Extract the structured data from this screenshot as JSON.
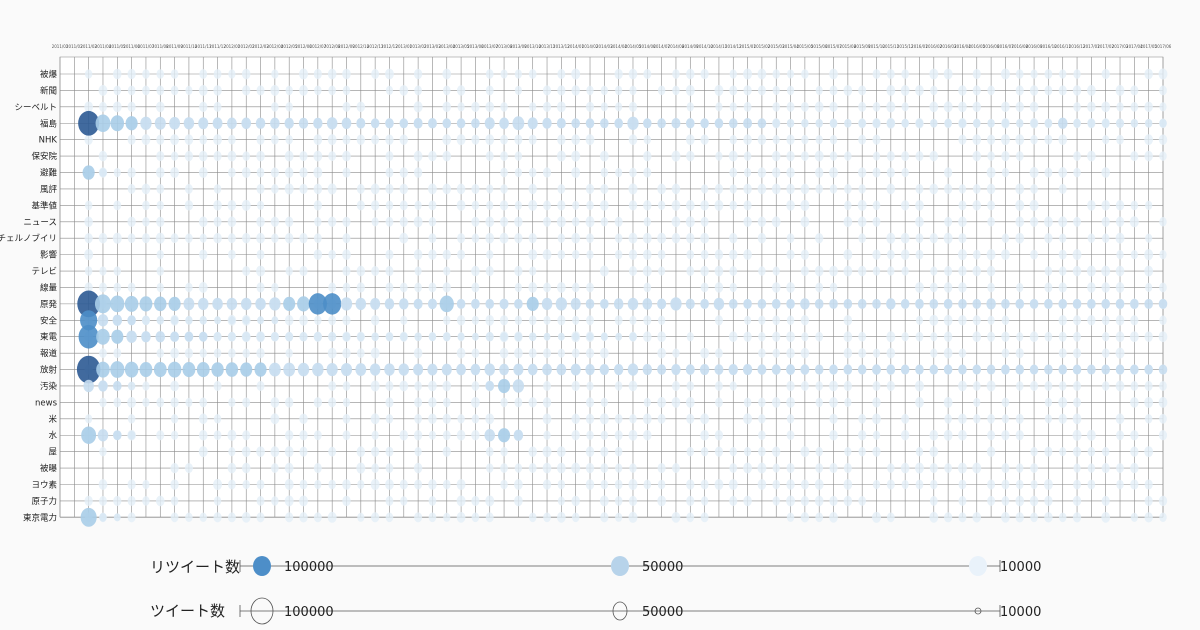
{
  "chart_data": {
    "type": "bubble-matrix",
    "rows": [
      "被爆",
      "新聞",
      "シーベルト",
      "福島",
      "NHK",
      "保安院",
      "避難",
      "風評",
      "基準値",
      "ニュース",
      "チェルノブイリ",
      "影響",
      "テレビ",
      "線量",
      "原発",
      "安全",
      "東電",
      "報道",
      "放射",
      "汚染",
      "news",
      "米",
      "水",
      "屋",
      "被曝",
      "ヨウ素",
      "原子力",
      "東京電力"
    ],
    "columns": [
      "2011/01",
      "2011/02",
      "2011/03",
      "2011/04",
      "2011/05",
      "2011/06",
      "2011/07",
      "2011/08",
      "2011/09",
      "2011/10",
      "2011/11",
      "2011/12",
      "2012/01",
      "2012/02",
      "2012/03",
      "2012/04",
      "2012/05",
      "2012/06",
      "2012/07",
      "2012/08",
      "2012/09",
      "2012/10",
      "2012/11",
      "2012/12",
      "2013/01",
      "2013/02",
      "2013/03",
      "2013/04",
      "2013/05",
      "2013/06",
      "2013/07",
      "2013/08",
      "2013/09",
      "2013/10",
      "2013/11",
      "2013/12",
      "2014/01",
      "2014/02",
      "2014/03",
      "2014/04",
      "2014/05",
      "2014/06",
      "2014/07",
      "2014/08",
      "2014/09",
      "2014/10",
      "2014/11",
      "2014/12",
      "2015/01",
      "2015/02",
      "2015/03",
      "2015/04",
      "2015/05",
      "2015/06",
      "2015/07",
      "2015/08",
      "2015/09",
      "2015/10",
      "2015/11",
      "2015/12",
      "2016/01",
      "2016/02",
      "2016/03",
      "2016/04",
      "2016/05",
      "2016/06",
      "2016/07",
      "2016/08",
      "2016/09",
      "2016/10",
      "2016/11",
      "2016/12",
      "2017/01",
      "2017/02",
      "2017/03",
      "2017/04",
      "2017/05",
      "2017/06"
    ],
    "series_strong": {
      "福島": [
        [
          2,
          120000
        ],
        [
          3,
          60000
        ],
        [
          4,
          50000
        ],
        [
          5,
          40000
        ],
        [
          6,
          35000
        ],
        [
          7,
          33000
        ],
        [
          8,
          32000
        ],
        [
          9,
          30000
        ],
        [
          10,
          28000
        ],
        [
          11,
          27000
        ],
        [
          12,
          26000
        ],
        [
          13,
          26000
        ],
        [
          14,
          25000
        ],
        [
          15,
          25000
        ],
        [
          16,
          24000
        ],
        [
          17,
          24000
        ],
        [
          18,
          24000
        ],
        [
          19,
          30000
        ],
        [
          20,
          26000
        ],
        [
          21,
          22000
        ],
        [
          22,
          20000
        ],
        [
          23,
          20000
        ],
        [
          24,
          20000
        ],
        [
          25,
          22000
        ],
        [
          26,
          22000
        ],
        [
          27,
          20000
        ],
        [
          28,
          20000
        ],
        [
          29,
          20000
        ],
        [
          30,
          28000
        ],
        [
          31,
          26000
        ],
        [
          32,
          38000
        ],
        [
          33,
          28000
        ],
        [
          34,
          24000
        ],
        [
          35,
          22000
        ],
        [
          36,
          20000
        ],
        [
          37,
          20000
        ],
        [
          38,
          20000
        ],
        [
          39,
          20000
        ],
        [
          40,
          35000
        ],
        [
          41,
          20000
        ],
        [
          42,
          20000
        ],
        [
          43,
          22000
        ],
        [
          44,
          20000
        ],
        [
          45,
          20000
        ],
        [
          46,
          20000
        ],
        [
          47,
          20000
        ],
        [
          48,
          22000
        ],
        [
          49,
          20000
        ],
        [
          50,
          15000
        ],
        [
          51,
          15000
        ],
        [
          52,
          15000
        ],
        [
          53,
          15000
        ],
        [
          54,
          15000
        ],
        [
          55,
          15000
        ],
        [
          56,
          15000
        ],
        [
          57,
          15000
        ],
        [
          58,
          18000
        ],
        [
          59,
          15000
        ],
        [
          60,
          15000
        ],
        [
          61,
          15000
        ],
        [
          62,
          15000
        ],
        [
          63,
          15000
        ],
        [
          64,
          15000
        ],
        [
          65,
          15000
        ],
        [
          66,
          15000
        ],
        [
          67,
          15000
        ],
        [
          68,
          15000
        ],
        [
          69,
          15000
        ],
        [
          70,
          25000
        ],
        [
          71,
          15000
        ],
        [
          72,
          15000
        ],
        [
          73,
          15000
        ],
        [
          74,
          18000
        ],
        [
          75,
          15000
        ],
        [
          76,
          15000
        ],
        [
          77,
          15000
        ]
      ],
      "原発": [
        [
          2,
          140000
        ],
        [
          3,
          70000
        ],
        [
          4,
          55000
        ],
        [
          5,
          50000
        ],
        [
          6,
          45000
        ],
        [
          7,
          42000
        ],
        [
          8,
          40000
        ],
        [
          9,
          32000
        ],
        [
          10,
          30000
        ],
        [
          11,
          30000
        ],
        [
          12,
          30000
        ],
        [
          13,
          30000
        ],
        [
          14,
          30000
        ],
        [
          15,
          35000
        ],
        [
          16,
          40000
        ],
        [
          17,
          45000
        ],
        [
          18,
          90000
        ],
        [
          19,
          90000
        ],
        [
          20,
          35000
        ],
        [
          21,
          30000
        ],
        [
          22,
          28000
        ],
        [
          23,
          25000
        ],
        [
          24,
          25000
        ],
        [
          25,
          22000
        ],
        [
          26,
          22000
        ],
        [
          27,
          55000
        ],
        [
          28,
          20000
        ],
        [
          29,
          20000
        ],
        [
          30,
          20000
        ],
        [
          31,
          22000
        ],
        [
          32,
          20000
        ],
        [
          33,
          40000
        ],
        [
          34,
          30000
        ],
        [
          35,
          35000
        ],
        [
          36,
          28000
        ],
        [
          37,
          20000
        ],
        [
          38,
          20000
        ],
        [
          39,
          25000
        ],
        [
          40,
          30000
        ],
        [
          41,
          26000
        ],
        [
          42,
          22000
        ],
        [
          43,
          35000
        ],
        [
          44,
          22000
        ],
        [
          45,
          20000
        ],
        [
          46,
          30000
        ],
        [
          47,
          20000
        ],
        [
          48,
          20000
        ],
        [
          49,
          20000
        ],
        [
          50,
          20000
        ],
        [
          51,
          20000
        ],
        [
          52,
          25000
        ],
        [
          53,
          20000
        ],
        [
          54,
          20000
        ],
        [
          55,
          20000
        ],
        [
          56,
          20000
        ],
        [
          57,
          20000
        ],
        [
          58,
          25000
        ],
        [
          59,
          20000
        ],
        [
          60,
          20000
        ],
        [
          61,
          20000
        ],
        [
          62,
          20000
        ],
        [
          63,
          20000
        ],
        [
          64,
          20000
        ],
        [
          65,
          25000
        ],
        [
          66,
          20000
        ],
        [
          67,
          20000
        ],
        [
          68,
          20000
        ],
        [
          69,
          20000
        ],
        [
          70,
          20000
        ],
        [
          71,
          20000
        ],
        [
          72,
          20000
        ],
        [
          73,
          20000
        ],
        [
          74,
          20000
        ],
        [
          75,
          20000
        ],
        [
          76,
          20000
        ],
        [
          77,
          20000
        ]
      ],
      "放射": [
        [
          2,
          150000
        ],
        [
          3,
          50000
        ],
        [
          4,
          55000
        ],
        [
          5,
          50000
        ],
        [
          6,
          45000
        ],
        [
          7,
          45000
        ],
        [
          8,
          50000
        ],
        [
          9,
          45000
        ],
        [
          10,
          45000
        ],
        [
          11,
          42000
        ],
        [
          12,
          42000
        ],
        [
          13,
          40000
        ],
        [
          14,
          40000
        ],
        [
          15,
          38000
        ],
        [
          16,
          38000
        ],
        [
          17,
          36000
        ],
        [
          18,
          36000
        ],
        [
          19,
          34000
        ],
        [
          20,
          34000
        ],
        [
          21,
          32000
        ],
        [
          22,
          30000
        ],
        [
          23,
          30000
        ],
        [
          24,
          30000
        ],
        [
          25,
          28000
        ],
        [
          26,
          28000
        ],
        [
          27,
          28000
        ],
        [
          28,
          26000
        ],
        [
          29,
          26000
        ],
        [
          30,
          30000
        ],
        [
          31,
          26000
        ],
        [
          32,
          28000
        ],
        [
          33,
          26000
        ],
        [
          34,
          26000
        ],
        [
          35,
          26000
        ],
        [
          36,
          28000
        ],
        [
          37,
          24000
        ],
        [
          38,
          24000
        ],
        [
          39,
          24000
        ],
        [
          40,
          30000
        ],
        [
          41,
          24000
        ],
        [
          42,
          22000
        ],
        [
          43,
          24000
        ],
        [
          44,
          22000
        ],
        [
          45,
          24000
        ],
        [
          46,
          22000
        ],
        [
          47,
          24000
        ],
        [
          48,
          24000
        ],
        [
          49,
          22000
        ],
        [
          50,
          22000
        ],
        [
          51,
          22000
        ],
        [
          52,
          22000
        ],
        [
          53,
          20000
        ],
        [
          54,
          20000
        ],
        [
          55,
          20000
        ],
        [
          56,
          20000
        ],
        [
          57,
          22000
        ],
        [
          58,
          20000
        ],
        [
          59,
          20000
        ],
        [
          60,
          20000
        ],
        [
          61,
          20000
        ],
        [
          62,
          20000
        ],
        [
          63,
          20000
        ],
        [
          64,
          20000
        ],
        [
          65,
          20000
        ],
        [
          66,
          20000
        ],
        [
          67,
          20000
        ],
        [
          68,
          20000
        ],
        [
          69,
          20000
        ],
        [
          70,
          20000
        ],
        [
          71,
          20000
        ],
        [
          72,
          20000
        ],
        [
          73,
          20000
        ],
        [
          74,
          20000
        ],
        [
          75,
          20000
        ],
        [
          76,
          20000
        ],
        [
          77,
          20000
        ]
      ],
      "東電": [
        [
          2,
          110000
        ],
        [
          3,
          50000
        ],
        [
          4,
          40000
        ],
        [
          5,
          30000
        ],
        [
          6,
          25000
        ],
        [
          7,
          25000
        ],
        [
          8,
          22000
        ],
        [
          9,
          20000
        ],
        [
          10,
          20000
        ],
        [
          11,
          18000
        ],
        [
          12,
          18000
        ],
        [
          13,
          18000
        ],
        [
          14,
          18000
        ],
        [
          15,
          18000
        ],
        [
          16,
          18000
        ],
        [
          17,
          18000
        ],
        [
          18,
          18000
        ],
        [
          19,
          18000
        ],
        [
          20,
          15000
        ],
        [
          21,
          15000
        ],
        [
          22,
          15000
        ],
        [
          23,
          15000
        ],
        [
          24,
          15000
        ],
        [
          25,
          15000
        ],
        [
          26,
          15000
        ],
        [
          27,
          15000
        ],
        [
          28,
          12000
        ],
        [
          29,
          12000
        ],
        [
          30,
          18000
        ],
        [
          31,
          15000
        ],
        [
          32,
          15000
        ],
        [
          33,
          15000
        ],
        [
          34,
          12000
        ],
        [
          35,
          12000
        ],
        [
          36,
          12000
        ],
        [
          37,
          12000
        ],
        [
          38,
          12000
        ],
        [
          39,
          12000
        ],
        [
          40,
          15000
        ]
      ],
      "安全": [
        [
          2,
          80000
        ],
        [
          3,
          30000
        ],
        [
          4,
          25000
        ],
        [
          5,
          20000
        ],
        [
          6,
          18000
        ],
        [
          7,
          15000
        ],
        [
          8,
          15000
        ],
        [
          9,
          15000
        ],
        [
          10,
          15000
        ],
        [
          11,
          12000
        ],
        [
          12,
          12000
        ],
        [
          13,
          12000
        ],
        [
          14,
          12000
        ],
        [
          15,
          12000
        ]
      ],
      "汚染": [
        [
          2,
          30000
        ],
        [
          3,
          25000
        ],
        [
          4,
          20000
        ],
        [
          5,
          15000
        ],
        [
          30,
          20000
        ],
        [
          31,
          40000
        ],
        [
          32,
          35000
        ]
      ],
      "水": [
        [
          2,
          60000
        ],
        [
          3,
          30000
        ],
        [
          4,
          20000
        ],
        [
          5,
          15000
        ],
        [
          30,
          30000
        ],
        [
          31,
          40000
        ],
        [
          32,
          25000
        ]
      ],
      "東京電力": [
        [
          2,
          70000
        ],
        [
          3,
          15000
        ],
        [
          4,
          10000
        ]
      ],
      "避難": [
        [
          2,
          40000
        ],
        [
          3,
          15000
        ]
      ]
    },
    "legend": {
      "retweet_label": "リツイート数",
      "tweet_label": "ツイート数",
      "values": [
        "100000",
        "50000",
        "10000"
      ]
    },
    "colors": {
      "dark": "#2c5a93",
      "mid": "#5a9ad0",
      "light": "#a9cde8",
      "pale": "#e4eff8",
      "grid": "#888888"
    }
  }
}
